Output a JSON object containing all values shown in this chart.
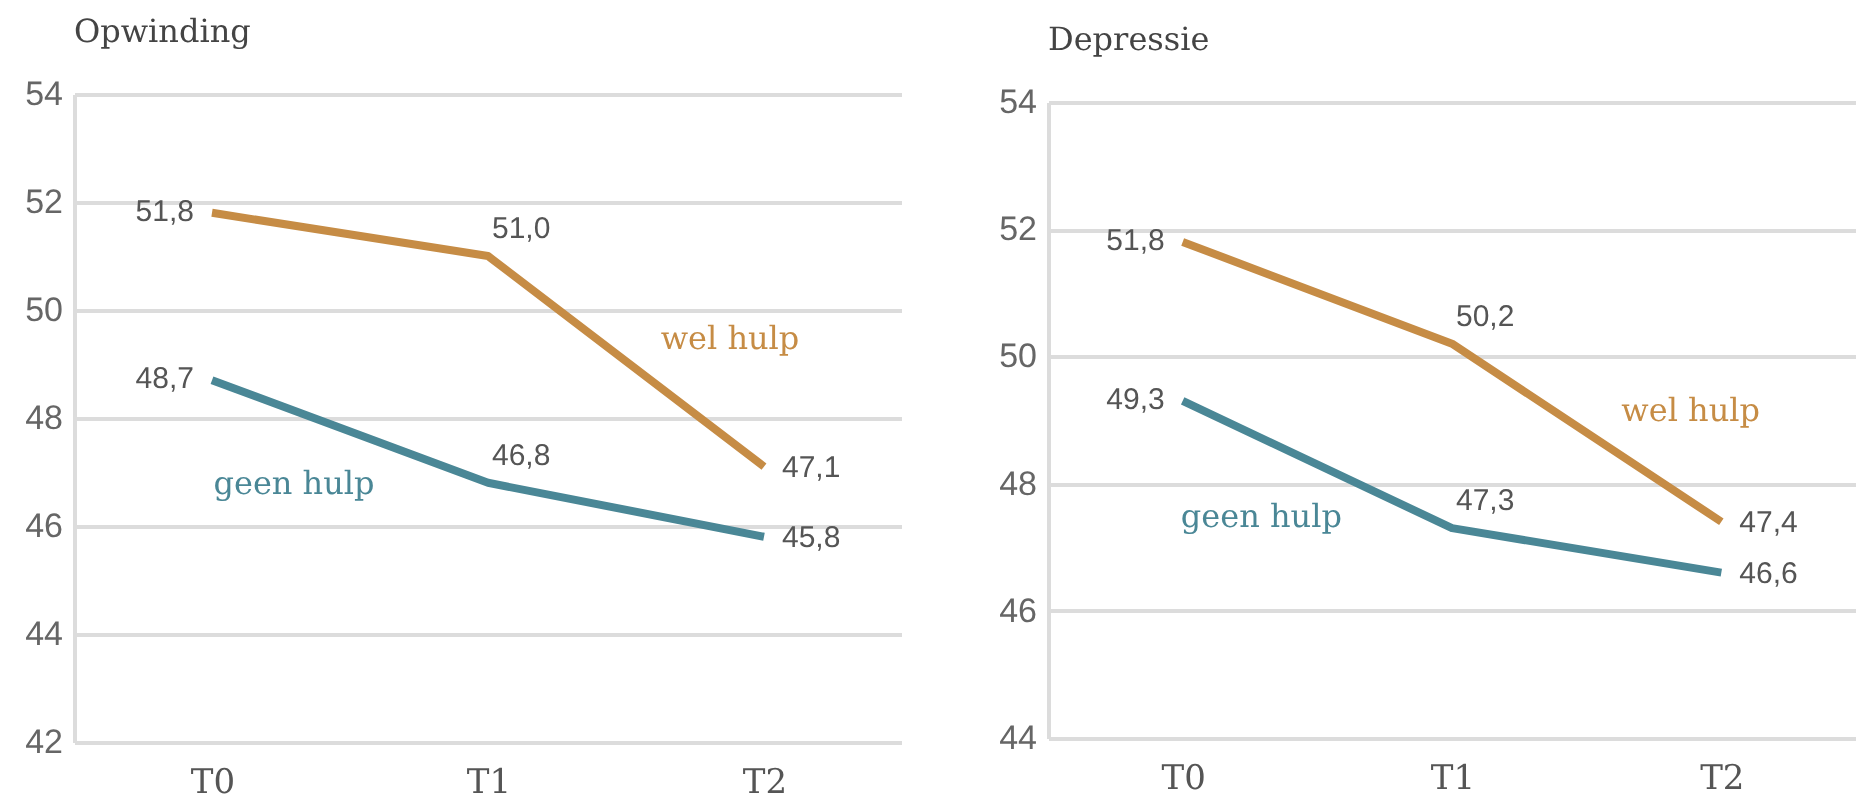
{
  "chart_data": [
    {
      "type": "line",
      "title": "Opwinding",
      "categories": [
        "T0",
        "T1",
        "T2"
      ],
      "series": [
        {
          "name": "wel hulp",
          "color": "#c68c45",
          "values": [
            51.8,
            51.0,
            47.1
          ],
          "value_labels": [
            "51,8",
            "51,0",
            "47,1"
          ]
        },
        {
          "name": "geen hulp",
          "color": "#4a8796",
          "values": [
            48.7,
            46.8,
            45.8
          ],
          "value_labels": [
            "48,7",
            "46,8",
            "45,8"
          ]
        }
      ],
      "ylim": [
        42,
        54
      ],
      "yticks": [
        42,
        44,
        46,
        48,
        50,
        52,
        54
      ],
      "grid": "y"
    },
    {
      "type": "line",
      "title": "Depressie",
      "categories": [
        "T0",
        "T1",
        "T2"
      ],
      "series": [
        {
          "name": "wel hulp",
          "color": "#c68c45",
          "values": [
            51.8,
            50.2,
            47.4
          ],
          "value_labels": [
            "51,8",
            "50,2",
            "47,4"
          ]
        },
        {
          "name": "geen hulp",
          "color": "#4a8796",
          "values": [
            49.3,
            47.3,
            46.6
          ],
          "value_labels": [
            "49,3",
            "47,3",
            "46,6"
          ]
        }
      ],
      "ylim": [
        44,
        54
      ],
      "yticks": [
        44,
        46,
        48,
        50,
        52,
        54
      ],
      "grid": "y"
    }
  ]
}
